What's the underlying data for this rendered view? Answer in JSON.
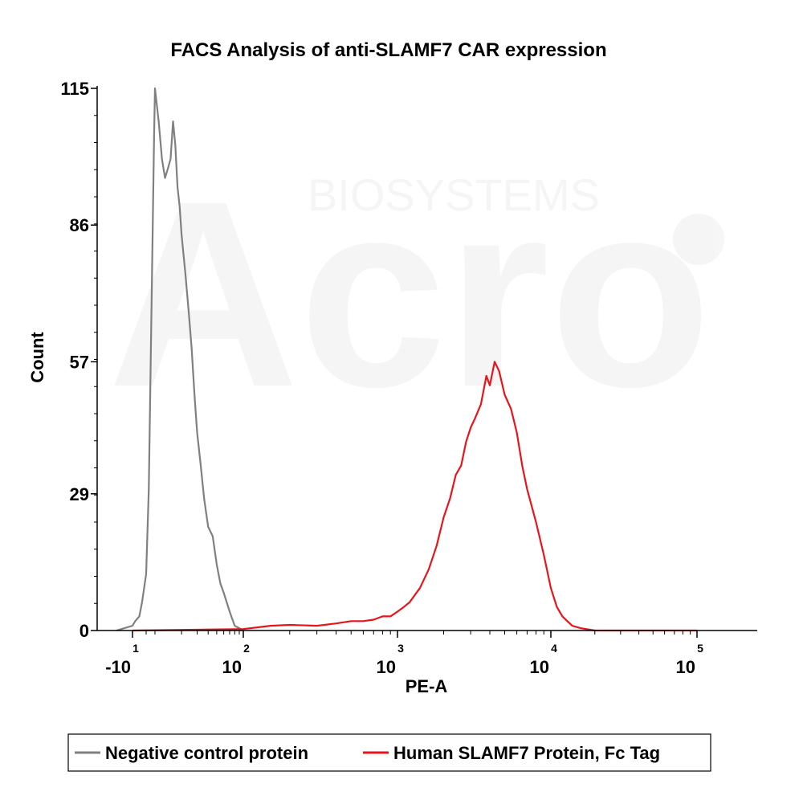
{
  "chart_data": {
    "type": "area",
    "title": "FACS Analysis of anti-SLAMF7 CAR expression",
    "xlabel": "PE-A",
    "ylabel": "Count",
    "x_scale": "biexponential-log",
    "x_ticks": [
      {
        "base": "-10",
        "exp": "1",
        "value": -10
      },
      {
        "base": "10",
        "exp": "2",
        "value": 100
      },
      {
        "base": "10",
        "exp": "3",
        "value": 1000
      },
      {
        "base": "10",
        "exp": "4",
        "value": 10000
      },
      {
        "base": "10",
        "exp": "5",
        "value": 100000
      }
    ],
    "y_ticks": [
      0,
      29,
      57,
      86,
      115
    ],
    "ylim": [
      0,
      115
    ],
    "legend_position": "bottom",
    "series": [
      {
        "name": "Negative control protein",
        "color": "#808080",
        "x": [
          -15,
          -10,
          -8,
          -5,
          -3,
          0,
          3,
          5,
          7,
          9,
          10,
          11,
          12,
          13,
          14,
          15,
          16,
          17,
          18,
          19,
          20,
          22,
          24,
          26,
          28,
          30,
          33,
          36,
          40,
          45,
          50,
          55,
          60,
          70,
          80,
          90,
          100
        ],
        "y": [
          0,
          1,
          2,
          3,
          6,
          12,
          30,
          55,
          80,
          105,
          115,
          108,
          100,
          96,
          98,
          100,
          108,
          103,
          94,
          90,
          84,
          76,
          68,
          60,
          50,
          42,
          35,
          28,
          22,
          20,
          14,
          10,
          8,
          4,
          1,
          0.5,
          0
        ]
      },
      {
        "name": "Human SLAMF7 Protein, Fc Tag",
        "color": "#e8141c",
        "x": [
          -10,
          100,
          150,
          200,
          300,
          400,
          500,
          600,
          700,
          800,
          900,
          1000,
          1100,
          1200,
          1400,
          1600,
          1800,
          2000,
          2200,
          2400,
          2600,
          2800,
          3000,
          3200,
          3500,
          3800,
          4000,
          4300,
          4600,
          5000,
          5500,
          6000,
          6500,
          7000,
          8000,
          9000,
          10000,
          11000,
          12000,
          14000,
          16000,
          20000,
          100000
        ],
        "y": [
          0,
          0.3,
          1,
          1.2,
          1,
          1.5,
          2,
          2,
          2.3,
          3,
          3,
          4,
          5,
          6,
          9,
          13,
          18,
          24,
          28,
          33,
          35,
          40,
          43,
          45,
          48,
          54,
          52,
          57,
          55,
          50,
          47,
          42,
          35,
          30,
          23,
          16,
          9,
          5,
          3,
          1,
          0.5,
          0,
          0
        ]
      }
    ]
  },
  "watermark": {
    "small": "BIOSYSTEMS",
    "large": "Acro"
  }
}
